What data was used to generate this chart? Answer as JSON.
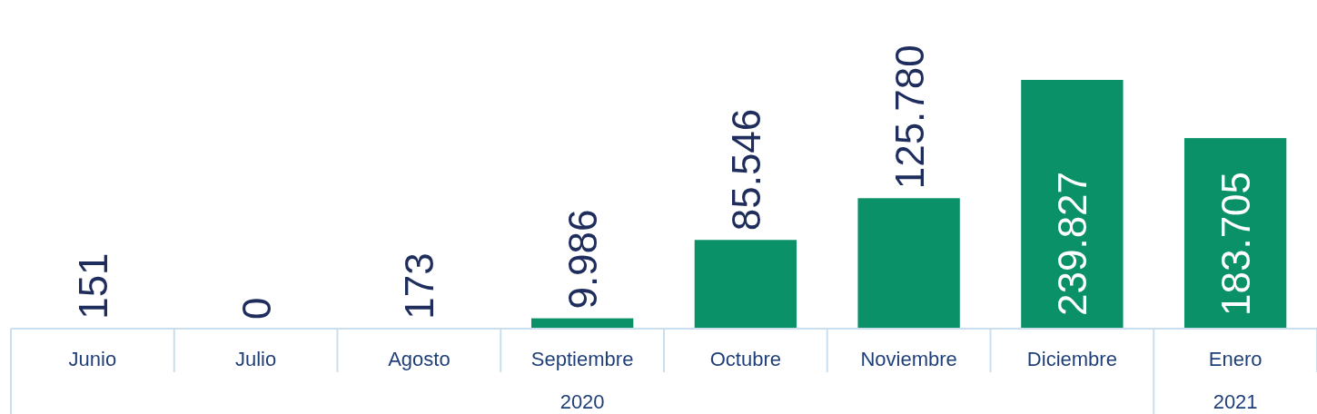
{
  "chart_data": {
    "type": "bar",
    "categories": [
      "Junio",
      "Julio",
      "Agosto",
      "Septiembre",
      "Octubre",
      "Noviembre",
      "Diciembre",
      "Enero"
    ],
    "values": [
      151,
      0,
      173,
      9986,
      85546,
      125780,
      239827,
      183705
    ],
    "value_labels": [
      "151",
      "0",
      "173",
      "9.986",
      "85.546",
      "125.780",
      "239.827",
      "183.705"
    ],
    "color": "#0a9168",
    "annotations": [
      "2020",
      "2021"
    ]
  }
}
